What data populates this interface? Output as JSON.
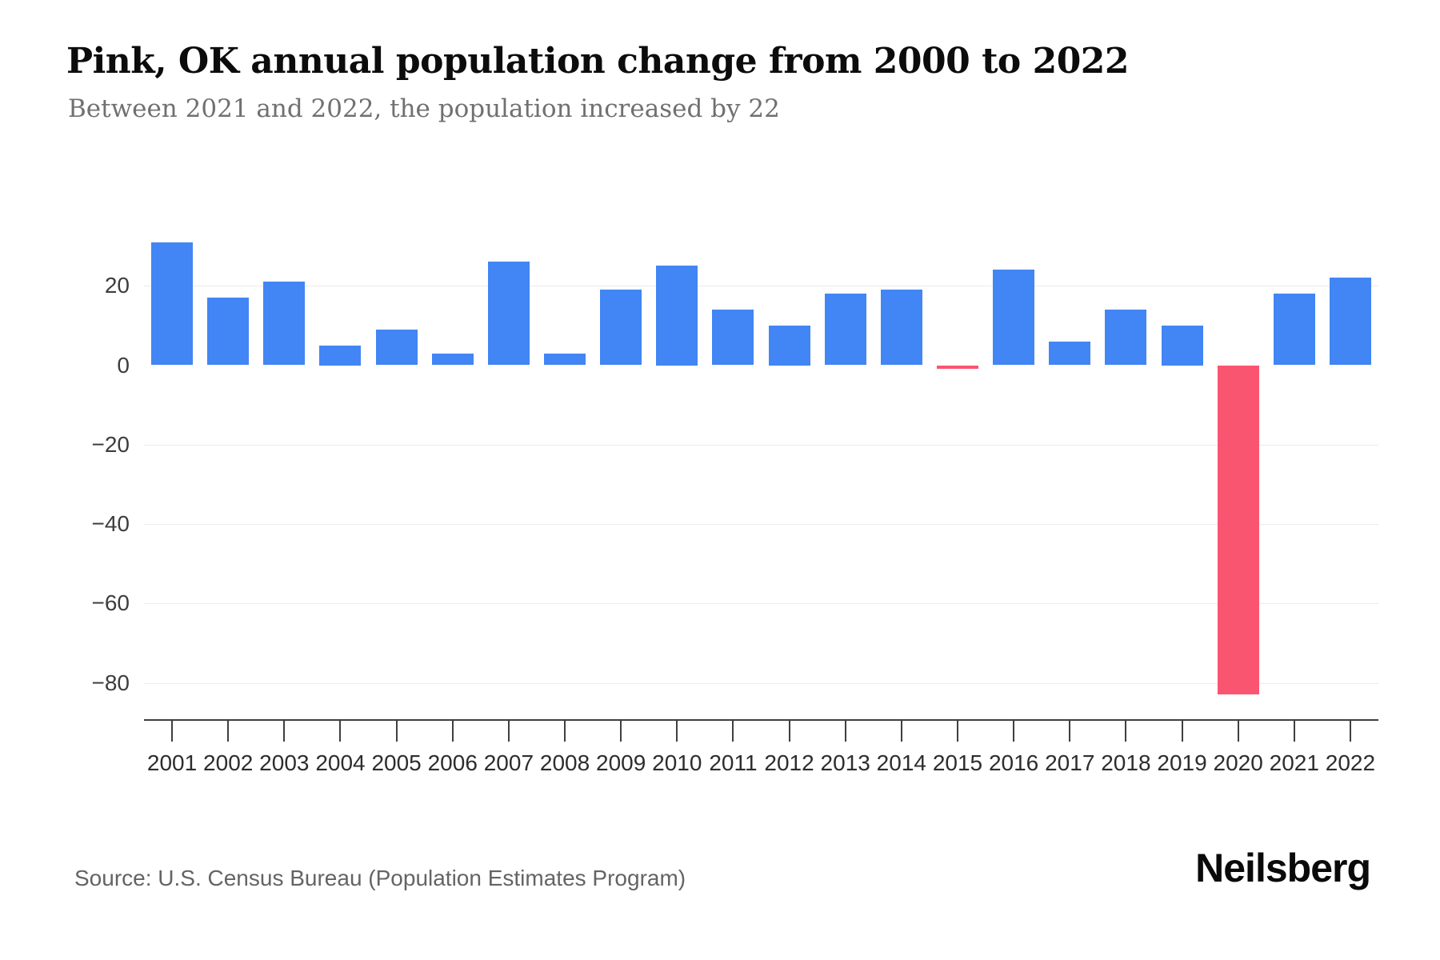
{
  "header": {
    "title": "Pink, OK annual population change from 2000 to 2022",
    "subtitle": "Between 2021 and 2022, the population increased by 22"
  },
  "chart_data": {
    "type": "bar",
    "title": "Pink, OK annual population change from 2000 to 2022",
    "subtitle": "Between 2021 and 2022, the population increased by 22",
    "categories": [
      "2001",
      "2002",
      "2003",
      "2004",
      "2005",
      "2006",
      "2007",
      "2008",
      "2009",
      "2010",
      "2011",
      "2012",
      "2013",
      "2014",
      "2015",
      "2016",
      "2017",
      "2018",
      "2019",
      "2020",
      "2021",
      "2022"
    ],
    "values": [
      31,
      17,
      21,
      5,
      9,
      3,
      26,
      3,
      19,
      25,
      14,
      10,
      18,
      19,
      -1,
      24,
      6,
      14,
      10,
      -83,
      18,
      22
    ],
    "series_name": "Annual population change",
    "xlabel": "",
    "ylabel": "",
    "yticks": [
      20,
      0,
      -20,
      -40,
      -60,
      -80
    ],
    "ylim": [
      -88,
      40
    ],
    "grid": true,
    "legend": false,
    "positive_color": "#4285f4",
    "negative_color": "#fa5570",
    "gridline_color": "#ebebeb",
    "axis_color": "#3f3f3f"
  },
  "footer": {
    "source": "Source: U.S. Census Bureau (Population Estimates Program)",
    "brand": "Neilsberg"
  }
}
